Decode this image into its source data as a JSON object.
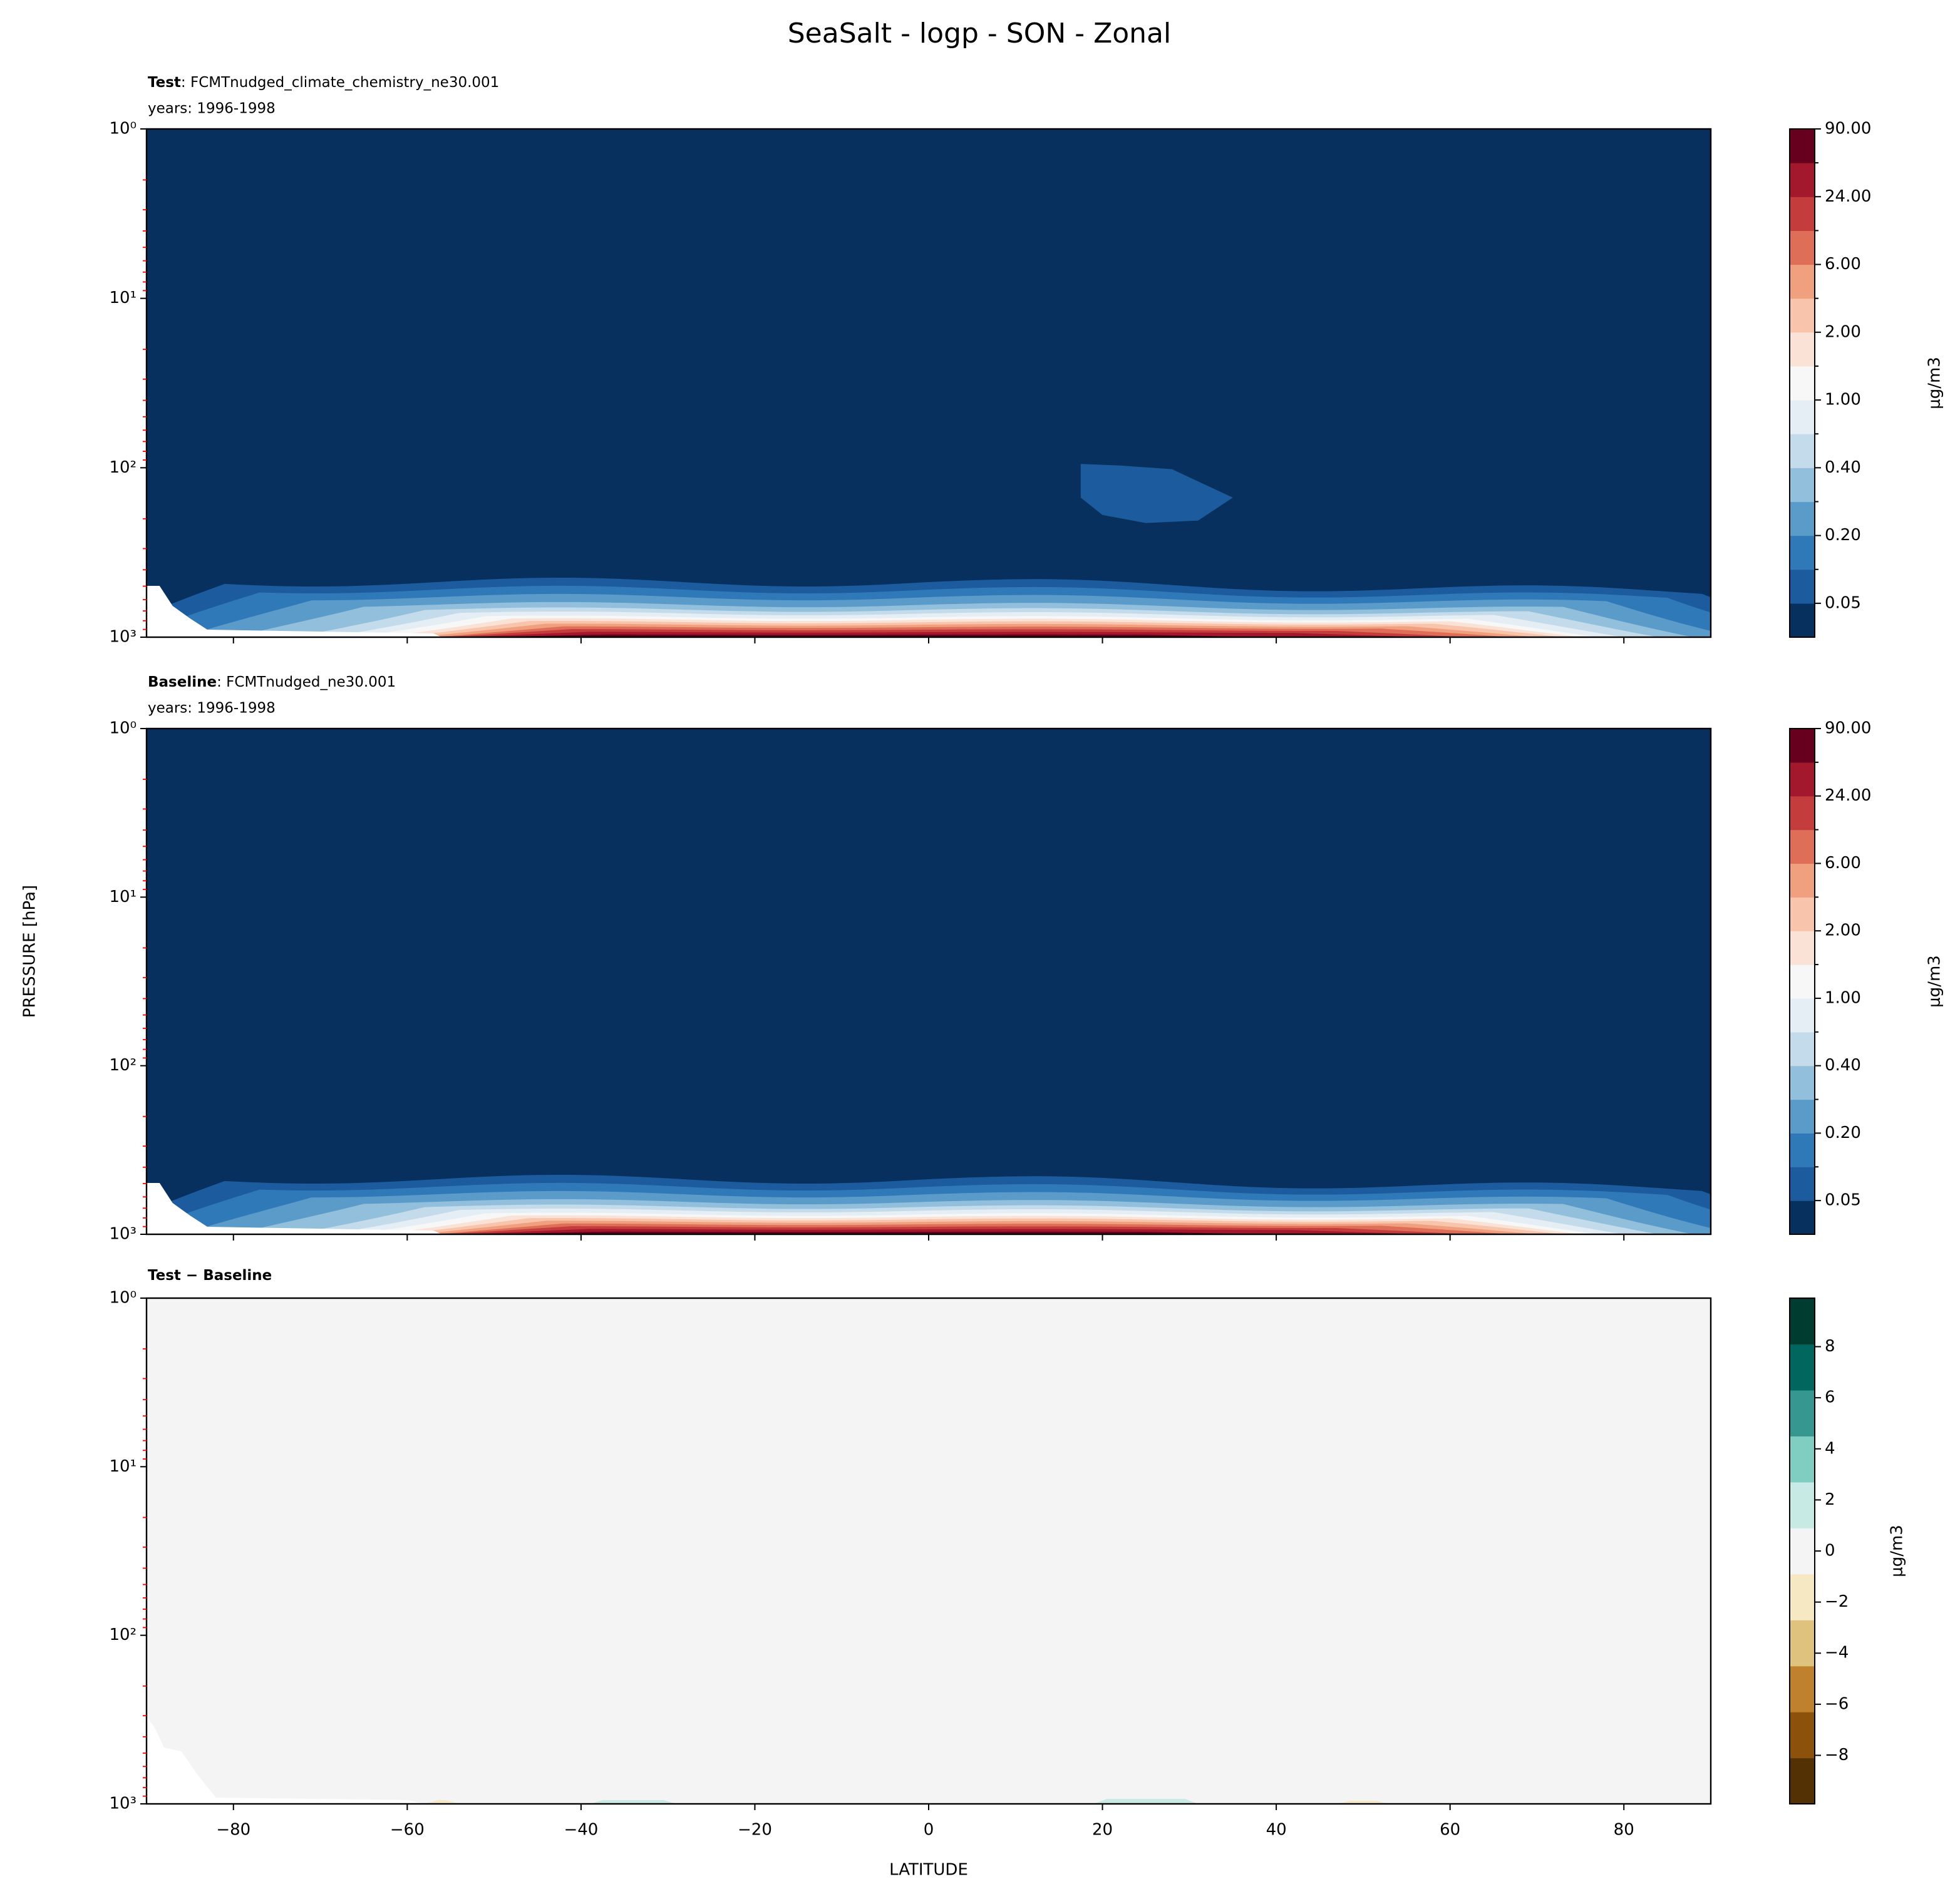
{
  "title": "SeaSalt - logp - SON - Zonal",
  "ylabel": "PRESSURE [hPa]",
  "chart_data": [
    {
      "type": "contour",
      "title": "Test",
      "case": ": FCMTnudged_climate_chemistry_ne30.001",
      "subtitle": "years: 1996-1998",
      "xlim": [
        -90,
        90
      ],
      "xticks": [
        -80,
        -60,
        -40,
        -20,
        0,
        20,
        40,
        60,
        80
      ],
      "show_xticklabels": false,
      "yscale": "log",
      "ylim": [
        1000,
        1
      ],
      "yticks": [
        {
          "value": 1,
          "label": "10⁰"
        },
        {
          "value": 10,
          "label": "10¹"
        },
        {
          "value": 100,
          "label": "10²"
        },
        {
          "value": 1000,
          "label": "10³"
        }
      ],
      "yminorticks": [
        2,
        3,
        4,
        5,
        6,
        7,
        8,
        9,
        20,
        30,
        40,
        50,
        60,
        70,
        80,
        90,
        200,
        300,
        400,
        500,
        600,
        700,
        800,
        900
      ],
      "minor_tick_color": "#ff0000",
      "colorbar": {
        "spacing": "uniform",
        "label": "μg/m3",
        "levels": [
          {
            "value": 0.05,
            "label": "0.05"
          },
          0.1,
          {
            "value": 0.2,
            "label": "0.20"
          },
          0.3,
          {
            "value": 0.4,
            "label": "0.40"
          },
          0.7,
          {
            "value": 1,
            "label": "1.00"
          },
          1.5,
          {
            "value": 2,
            "label": "2.00"
          },
          4,
          {
            "value": 6,
            "label": "6.00"
          },
          12,
          {
            "value": 24,
            "label": "24.00"
          },
          48,
          {
            "value": 90,
            "label": "90.00"
          }
        ],
        "colors": [
          "#08305f",
          "#1c5c9e",
          "#3079b8",
          "#5a9bca",
          "#92c0dc",
          "#c3dbea",
          "#e4eef4",
          "#f7f7f7",
          "#fae2d6",
          "#f8c4ab",
          "#f0a07e",
          "#de6e58",
          "#c43d3c",
          "#a3182c",
          "#67001f"
        ]
      }
    },
    {
      "type": "contour",
      "title": "Baseline",
      "case": ": FCMTnudged_ne30.001",
      "subtitle": "years: 1996-1998",
      "xlim": [
        -90,
        90
      ],
      "xticks": [
        -80,
        -60,
        -40,
        -20,
        0,
        20,
        40,
        60,
        80
      ],
      "show_xticklabels": false,
      "yscale": "log",
      "ylim": [
        1000,
        1
      ],
      "yticks": [
        {
          "value": 1,
          "label": "10⁰"
        },
        {
          "value": 10,
          "label": "10¹"
        },
        {
          "value": 100,
          "label": "10²"
        },
        {
          "value": 1000,
          "label": "10³"
        }
      ],
      "yminorticks": [
        2,
        3,
        4,
        5,
        6,
        7,
        8,
        9,
        20,
        30,
        40,
        50,
        60,
        70,
        80,
        90,
        200,
        300,
        400,
        500,
        600,
        700,
        800,
        900
      ],
      "minor_tick_color": "#ff0000",
      "colorbar": {
        "spacing": "uniform",
        "label": "μg/m3",
        "levels": [
          {
            "value": 0.05,
            "label": "0.05"
          },
          0.1,
          {
            "value": 0.2,
            "label": "0.20"
          },
          0.3,
          {
            "value": 0.4,
            "label": "0.40"
          },
          0.7,
          {
            "value": 1,
            "label": "1.00"
          },
          1.5,
          {
            "value": 2,
            "label": "2.00"
          },
          4,
          {
            "value": 6,
            "label": "6.00"
          },
          12,
          {
            "value": 24,
            "label": "24.00"
          },
          48,
          {
            "value": 90,
            "label": "90.00"
          }
        ],
        "colors": [
          "#08305f",
          "#1c5c9e",
          "#3079b8",
          "#5a9bca",
          "#92c0dc",
          "#c3dbea",
          "#e4eef4",
          "#f7f7f7",
          "#fae2d6",
          "#f8c4ab",
          "#f0a07e",
          "#de6e58",
          "#c43d3c",
          "#a3182c",
          "#67001f"
        ]
      }
    },
    {
      "type": "contour",
      "title": "Test − Baseline",
      "xlabel": "LATITUDE",
      "xlim": [
        -90,
        90
      ],
      "xticks": [
        {
          "value": -80,
          "label": "−80"
        },
        {
          "value": -60,
          "label": "−60"
        },
        {
          "value": -40,
          "label": "−40"
        },
        {
          "value": -20,
          "label": "−20"
        },
        0,
        20,
        40,
        60,
        80
      ],
      "show_xticklabels": true,
      "yscale": "log",
      "ylim": [
        1000,
        1
      ],
      "yticks": [
        {
          "value": 1,
          "label": "10⁰"
        },
        {
          "value": 10,
          "label": "10¹"
        },
        {
          "value": 100,
          "label": "10²"
        },
        {
          "value": 1000,
          "label": "10³"
        }
      ],
      "yminorticks": [
        2,
        3,
        4,
        5,
        6,
        7,
        8,
        9,
        20,
        30,
        40,
        50,
        60,
        70,
        80,
        90,
        200,
        300,
        400,
        500,
        600,
        700,
        800,
        900
      ],
      "minor_tick_color": "#ff0000",
      "colorbar": {
        "spacing": "proportional",
        "label": "μg/m3",
        "levels": [
          -9.9,
          -8.1,
          -6.3,
          -4.5,
          -2.7,
          -0.9,
          0.9,
          2.7,
          4.5,
          6.3,
          8.1,
          9.9
        ],
        "ticks": [
          {
            "value": -8,
            "label": "−8"
          },
          {
            "value": -6,
            "label": "−6"
          },
          {
            "value": -4,
            "label": "−4"
          },
          {
            "value": -2,
            "label": "−2"
          },
          0,
          2,
          4,
          6,
          8
        ],
        "colors": [
          "#543005",
          "#8c510a",
          "#bf812d",
          "#dfc27d",
          "#f6e8c3",
          "#f3f4f3",
          "#c7eae5",
          "#80cdc1",
          "#35978f",
          "#01665e",
          "#003c30"
        ]
      }
    }
  ]
}
